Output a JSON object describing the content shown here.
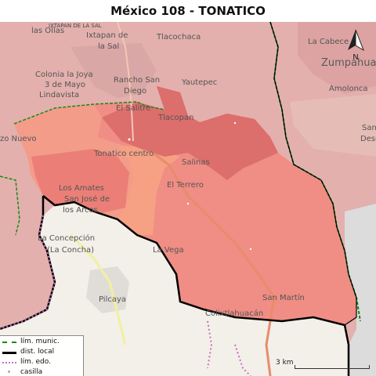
{
  "title": "México 108 - TONATICO",
  "places": {
    "las_ollas": "las Ollas",
    "ixtapan_de_la_sal_small": "IXTAPAN DE LA SAL",
    "ixtapan_de_la_sal": "Ixtapan de la Sal",
    "tlacochaca": "Tlacochaca",
    "la_cabecera": "La Cabece",
    "zumpahuacan": "Zumpahua",
    "amolonca": "Amolonca",
    "colonia_la_joya": "Colonia la Joya",
    "tres_de_mayo": "3 de Mayo",
    "lindavista": "Lindavista",
    "rancho_san_diego_1": "Rancho San",
    "rancho_san_diego_2": "Diego",
    "yautepec": "Yautepec",
    "el_salitre": "El Salitre",
    "tlacopan": "Tlacopan",
    "san_label": "San",
    "desc_label": "Desc",
    "zo_nuevo": "zo Nuevo",
    "tonatico_centro": "Tonatico centro",
    "salinas": "Salinas",
    "el_terrero": "El Terrero",
    "los_amates": "Los Amates",
    "san_jose_1": "San José de",
    "san_jose_2": "los Arcos",
    "la_concepcion_1": "La Concepción",
    "la_concepcion_2": "(La Concha)",
    "la_vega": "La Vega",
    "pilcaya": "Pilcaya",
    "san_martin": "San Martín",
    "colixtlahuacan": "Colixtlahuacán"
  },
  "legend": {
    "items": [
      {
        "label": "lím. munic.",
        "style": "municipal"
      },
      {
        "label": "dist. local",
        "style": "district"
      },
      {
        "label": "lím. edo.",
        "style": "state"
      },
      {
        "label": "casilla",
        "style": "polling-station"
      }
    ]
  },
  "scale": {
    "label": "3 km"
  },
  "north_arrow": {
    "label": "N"
  },
  "colors": {
    "base_map": "#e3b0ad",
    "district_fill": "#f08d84",
    "darker_section": "#dc6e6c",
    "orange_section": "#f6a183",
    "outside_land": "#f3efe9",
    "municipal_line": "#148a14",
    "district_line": "#000000",
    "state_line": "#c670c0"
  }
}
